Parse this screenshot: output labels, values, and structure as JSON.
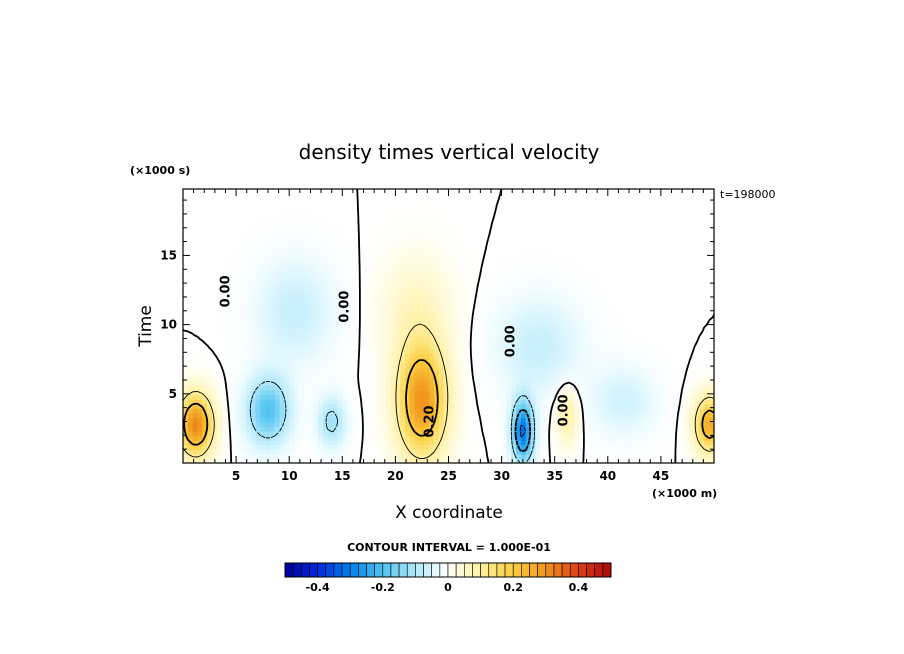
{
  "chart_data": {
    "type": "heatmap",
    "title": "density times vertical velocity",
    "xlabel": "X coordinate",
    "ylabel": "Time",
    "x_unit": "(×1000 m)",
    "y_unit": "(×1000 s)",
    "xlim": [
      0,
      50
    ],
    "ylim": [
      0,
      19.8
    ],
    "x_ticks": [
      5,
      10,
      15,
      20,
      25,
      30,
      35,
      40,
      45
    ],
    "y_ticks": [
      5,
      10,
      15
    ],
    "timestamp": "t=198000",
    "contour_interval_label": "CONTOUR INTERVAL = 1.000E-01",
    "contour_interval": 0.1,
    "contour_labels": [
      {
        "text": "0.00",
        "x": 4.4,
        "y": 12.4
      },
      {
        "text": "0.00",
        "x": 15.6,
        "y": 11.3
      },
      {
        "text": "0.20",
        "x": 23.6,
        "y": 3.0
      },
      {
        "text": "0.00",
        "x": 31.2,
        "y": 8.8
      },
      {
        "text": "0.00",
        "x": 36.2,
        "y": 3.8
      }
    ],
    "colorbar": {
      "min": -0.5,
      "max": 0.5,
      "ticks": [
        "-0.4",
        "-0.2",
        "0",
        "0.2",
        "0.4"
      ],
      "tick_values": [
        -0.4,
        -0.2,
        0,
        0.2,
        0.4
      ]
    },
    "features": [
      {
        "x": 1.2,
        "y": 2.8,
        "sx": 1.6,
        "sy": 2.2,
        "a": 0.32
      },
      {
        "x": 49.6,
        "y": 2.8,
        "sx": 1.4,
        "sy": 2.0,
        "a": 0.26
      },
      {
        "x": 22.5,
        "y": 4.5,
        "sx": 2.3,
        "sy": 4.0,
        "a": 0.3
      },
      {
        "x": 22.0,
        "y": 11.0,
        "sx": 3.2,
        "sy": 4.0,
        "a": 0.06
      },
      {
        "x": 36.2,
        "y": 3.5,
        "sx": 1.0,
        "sy": 2.0,
        "a": 0.1
      },
      {
        "x": 8.0,
        "y": 3.8,
        "sx": 2.0,
        "sy": 2.4,
        "a": -0.2
      },
      {
        "x": 10.5,
        "y": 11.0,
        "sx": 3.6,
        "sy": 3.8,
        "a": -0.07
      },
      {
        "x": 14.0,
        "y": 3.0,
        "sx": 1.3,
        "sy": 1.8,
        "a": -0.12
      },
      {
        "x": 32.0,
        "y": 2.3,
        "sx": 1.0,
        "sy": 2.2,
        "a": -0.32
      },
      {
        "x": 33.5,
        "y": 8.5,
        "sx": 4.0,
        "sy": 3.5,
        "a": -0.07
      },
      {
        "x": 41.5,
        "y": 4.5,
        "sx": 3.0,
        "sy": 2.5,
        "a": -0.06
      }
    ]
  }
}
